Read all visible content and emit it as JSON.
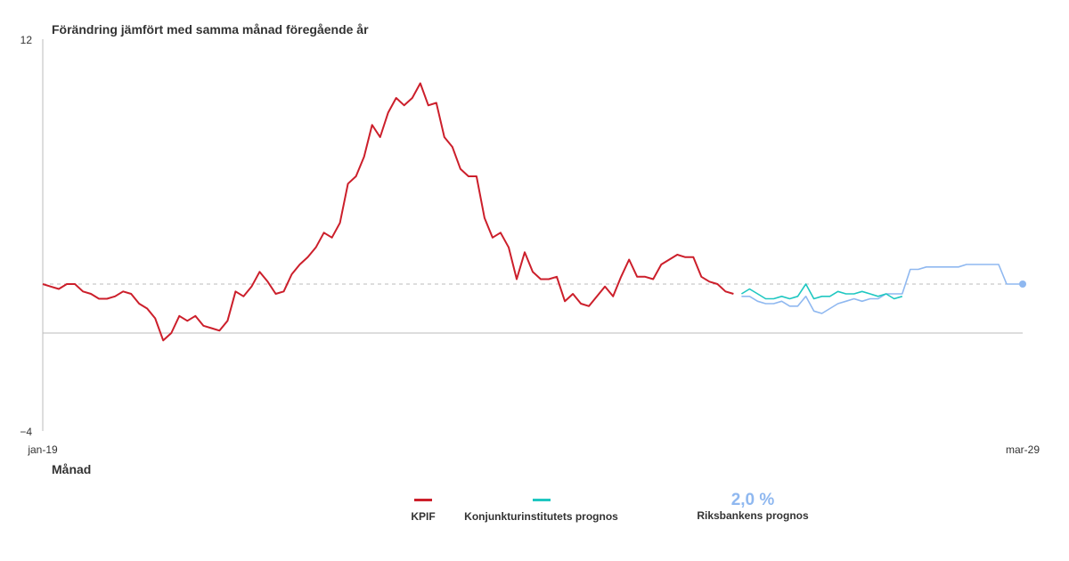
{
  "chart_data": {
    "type": "line",
    "ylabel": "Förändring jämfört med samma månad föregående år",
    "xlabel": "Månad",
    "ylim": [
      -4,
      12
    ],
    "y_ticks": [
      "12",
      "−4"
    ],
    "x_ticks": [
      "jan-19",
      "mar-29"
    ],
    "x_start": "2019-01",
    "x_end": "2029-03",
    "target_line": 2,
    "series": [
      {
        "name": "KPIF",
        "color": "#cc1f2b",
        "start": "2019-01",
        "values": [
          2.0,
          1.9,
          1.8,
          2.0,
          2.0,
          1.7,
          1.6,
          1.4,
          1.4,
          1.5,
          1.7,
          1.6,
          1.2,
          1.0,
          0.6,
          -0.3,
          0.0,
          0.7,
          0.5,
          0.7,
          0.3,
          0.2,
          0.1,
          0.5,
          1.7,
          1.5,
          1.9,
          2.5,
          2.1,
          1.6,
          1.7,
          2.4,
          2.8,
          3.1,
          3.5,
          4.1,
          3.9,
          4.5,
          6.1,
          6.4,
          7.2,
          8.5,
          8.0,
          9.0,
          9.6,
          9.3,
          9.6,
          10.2,
          9.3,
          9.4,
          8.0,
          7.6,
          6.7,
          6.4,
          6.4,
          4.7,
          3.9,
          4.1,
          3.5,
          2.2,
          3.3,
          2.5,
          2.2,
          2.2,
          2.3,
          1.3,
          1.6,
          1.2,
          1.1,
          1.5,
          1.9,
          1.5,
          2.3,
          3.0,
          2.3,
          2.3,
          2.2,
          2.8,
          3.0,
          3.2,
          3.1,
          3.1,
          2.3,
          2.1,
          2.0,
          1.7,
          1.6
        ]
      },
      {
        "name": "Konjunkturinstitutets prognos",
        "color": "#1fc7c1",
        "start": "2026-04",
        "values": [
          1.6,
          1.8,
          1.6,
          1.4,
          1.4,
          1.5,
          1.4,
          1.5,
          2.0,
          1.4,
          1.5,
          1.5,
          1.7,
          1.6,
          1.6,
          1.7,
          1.6,
          1.5,
          1.6,
          1.4,
          1.5
        ]
      },
      {
        "name": "Riksbankens prognos",
        "color": "#8fb8f0",
        "value_label": "2,0 %",
        "start": "2026-04",
        "values": [
          1.5,
          1.5,
          1.3,
          1.2,
          1.2,
          1.3,
          1.1,
          1.1,
          1.5,
          0.9,
          0.8,
          1.0,
          1.2,
          1.3,
          1.4,
          1.3,
          1.4,
          1.4,
          1.6,
          1.6,
          1.6,
          2.6,
          2.6,
          2.7,
          2.7,
          2.7,
          2.7,
          2.7,
          2.8,
          2.8,
          2.8,
          2.8,
          2.8,
          2.0,
          2.0,
          2.0
        ]
      }
    ],
    "grid": false,
    "legend": "bottom-center"
  }
}
